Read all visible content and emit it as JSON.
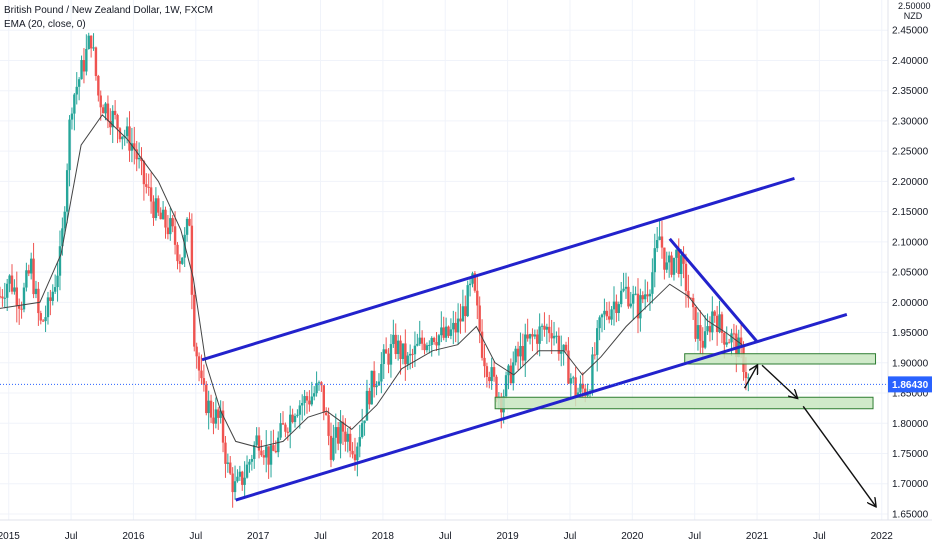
{
  "header": {
    "title": "British Pound / New Zealand Dollar, 1W, FXCM",
    "indicator": "EMA (20, close, 0)"
  },
  "currency": {
    "top_tick": "2.50000",
    "unit": "NZD"
  },
  "last_price": {
    "label": "1.86430",
    "value": 1.8643,
    "color": "#2962ff"
  },
  "colors": {
    "up": "#26a69a",
    "down": "#ef5350",
    "channel": "#2222cc",
    "zone_fill": "#c8e6c0",
    "zone_stroke": "#2e7d32",
    "ema": "#444444",
    "arrow": "#111111"
  },
  "chart_data": {
    "type": "candlestick",
    "symbol": "GBPNZD",
    "timeframe": "1W",
    "ylim": [
      1.64,
      2.5
    ],
    "xlim": [
      2014.93,
      2022.05
    ],
    "yticks": [
      1.65,
      1.7,
      1.75,
      1.8,
      1.85,
      1.9,
      1.95,
      2.0,
      2.05,
      2.1,
      2.15,
      2.2,
      2.25,
      2.3,
      2.35,
      2.4,
      2.45
    ],
    "ytick_labels": [
      "1.65000",
      "1.70000",
      "1.75000",
      "1.80000",
      "1.85000",
      "1.90000",
      "1.95000",
      "2.00000",
      "2.05000",
      "2.10000",
      "2.15000",
      "2.20000",
      "2.25000",
      "2.30000",
      "2.35000",
      "2.40000",
      "2.45000"
    ],
    "xticks": [
      {
        "t": 2015.0,
        "label": "2015"
      },
      {
        "t": 2015.5,
        "label": "Jul"
      },
      {
        "t": 2016.0,
        "label": "2016"
      },
      {
        "t": 2016.5,
        "label": "Jul"
      },
      {
        "t": 2017.0,
        "label": "2017"
      },
      {
        "t": 2017.5,
        "label": "Jul"
      },
      {
        "t": 2018.0,
        "label": "2018"
      },
      {
        "t": 2018.5,
        "label": "Jul"
      },
      {
        "t": 2019.0,
        "label": "2019"
      },
      {
        "t": 2019.5,
        "label": "Jul"
      },
      {
        "t": 2020.0,
        "label": "2020"
      },
      {
        "t": 2020.5,
        "label": "Jul"
      },
      {
        "t": 2021.0,
        "label": "2021"
      },
      {
        "t": 2021.5,
        "label": "Jul"
      },
      {
        "t": 2022.0,
        "label": "2022"
      }
    ],
    "price_path": [
      [
        2014.93,
        2.01
      ],
      [
        2015.0,
        2.04
      ],
      [
        2015.1,
        2.0
      ],
      [
        2015.18,
        2.06
      ],
      [
        2015.25,
        1.96
      ],
      [
        2015.32,
        1.99
      ],
      [
        2015.42,
        2.08
      ],
      [
        2015.5,
        2.33
      ],
      [
        2015.58,
        2.38
      ],
      [
        2015.66,
        2.44
      ],
      [
        2015.72,
        2.34
      ],
      [
        2015.82,
        2.31
      ],
      [
        2015.92,
        2.28
      ],
      [
        2016.0,
        2.26
      ],
      [
        2016.08,
        2.2
      ],
      [
        2016.2,
        2.14
      ],
      [
        2016.3,
        2.12
      ],
      [
        2016.38,
        2.07
      ],
      [
        2016.45,
        2.14
      ],
      [
        2016.48,
        1.96
      ],
      [
        2016.55,
        1.85
      ],
      [
        2016.62,
        1.82
      ],
      [
        2016.7,
        1.8
      ],
      [
        2016.76,
        1.72
      ],
      [
        2016.82,
        1.69
      ],
      [
        2016.9,
        1.72
      ],
      [
        2017.0,
        1.78
      ],
      [
        2017.1,
        1.74
      ],
      [
        2017.2,
        1.79
      ],
      [
        2017.3,
        1.83
      ],
      [
        2017.4,
        1.84
      ],
      [
        2017.5,
        1.86
      ],
      [
        2017.58,
        1.76
      ],
      [
        2017.68,
        1.79
      ],
      [
        2017.78,
        1.76
      ],
      [
        2017.9,
        1.86
      ],
      [
        2018.0,
        1.9
      ],
      [
        2018.1,
        1.93
      ],
      [
        2018.2,
        1.9
      ],
      [
        2018.3,
        1.93
      ],
      [
        2018.4,
        1.95
      ],
      [
        2018.5,
        1.94
      ],
      [
        2018.6,
        1.96
      ],
      [
        2018.72,
        2.03
      ],
      [
        2018.8,
        1.92
      ],
      [
        2018.88,
        1.87
      ],
      [
        2018.95,
        1.84
      ],
      [
        2019.05,
        1.9
      ],
      [
        2019.15,
        1.93
      ],
      [
        2019.25,
        1.95
      ],
      [
        2019.35,
        1.96
      ],
      [
        2019.45,
        1.91
      ],
      [
        2019.55,
        1.85
      ],
      [
        2019.65,
        1.86
      ],
      [
        2019.75,
        1.97
      ],
      [
        2019.85,
        2.0
      ],
      [
        2019.95,
        2.02
      ],
      [
        2020.05,
        1.99
      ],
      [
        2020.15,
        2.04
      ],
      [
        2020.22,
        2.11
      ],
      [
        2020.28,
        2.05
      ],
      [
        2020.35,
        2.08
      ],
      [
        2020.42,
        2.04
      ],
      [
        2020.5,
        1.96
      ],
      [
        2020.58,
        1.93
      ],
      [
        2020.65,
        1.99
      ],
      [
        2020.72,
        1.95
      ],
      [
        2020.8,
        1.94
      ],
      [
        2020.88,
        1.91
      ],
      [
        2020.93,
        1.87
      ]
    ],
    "ema_path": [
      [
        2014.93,
        1.99
      ],
      [
        2015.25,
        2.0
      ],
      [
        2015.42,
        2.08
      ],
      [
        2015.58,
        2.26
      ],
      [
        2015.75,
        2.31
      ],
      [
        2015.95,
        2.27
      ],
      [
        2016.2,
        2.2
      ],
      [
        2016.38,
        2.12
      ],
      [
        2016.48,
        2.04
      ],
      [
        2016.58,
        1.9
      ],
      [
        2016.7,
        1.82
      ],
      [
        2016.82,
        1.77
      ],
      [
        2017.0,
        1.76
      ],
      [
        2017.2,
        1.77
      ],
      [
        2017.4,
        1.81
      ],
      [
        2017.55,
        1.82
      ],
      [
        2017.75,
        1.79
      ],
      [
        2017.95,
        1.83
      ],
      [
        2018.15,
        1.89
      ],
      [
        2018.4,
        1.92
      ],
      [
        2018.6,
        1.93
      ],
      [
        2018.75,
        1.96
      ],
      [
        2018.9,
        1.9
      ],
      [
        2019.05,
        1.88
      ],
      [
        2019.25,
        1.92
      ],
      [
        2019.45,
        1.92
      ],
      [
        2019.6,
        1.88
      ],
      [
        2019.75,
        1.91
      ],
      [
        2019.95,
        1.96
      ],
      [
        2020.15,
        2.0
      ],
      [
        2020.3,
        2.03
      ],
      [
        2020.45,
        2.01
      ],
      [
        2020.6,
        1.97
      ],
      [
        2020.75,
        1.95
      ],
      [
        2020.88,
        1.93
      ]
    ],
    "channel_upper": [
      [
        2016.55,
        1.905
      ],
      [
        2021.3,
        2.205
      ]
    ],
    "channel_lower": [
      [
        2016.82,
        1.673
      ],
      [
        2021.72,
        1.98
      ]
    ],
    "wedge_line": [
      [
        2020.3,
        2.105
      ],
      [
        2021.0,
        1.935
      ]
    ],
    "resistance_zone": {
      "t0": 2020.42,
      "t1": 2021.95,
      "y0": 1.898,
      "y1": 1.915
    },
    "support_zone": {
      "t0": 2018.9,
      "t1": 2021.93,
      "y0": 1.824,
      "y1": 1.843
    },
    "forecast_arrows": [
      [
        [
          2020.9,
          1.858
        ],
        [
          2021.0,
          1.895
        ]
      ],
      [
        [
          2021.04,
          1.896
        ],
        [
          2021.32,
          1.842
        ]
      ],
      [
        [
          2021.37,
          1.828
        ],
        [
          2021.95,
          1.663
        ]
      ]
    ]
  }
}
